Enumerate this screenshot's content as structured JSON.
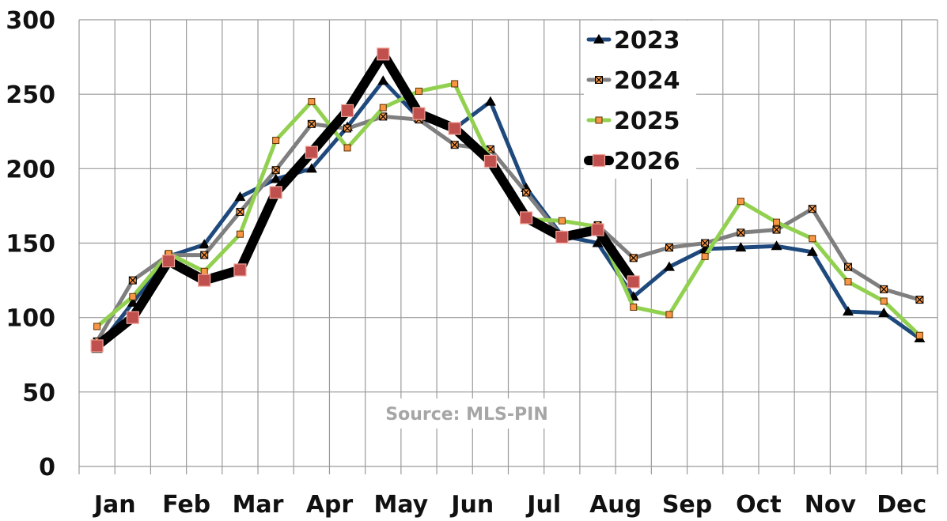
{
  "chart_data": {
    "type": "line",
    "title": "",
    "xlabel": "",
    "ylabel": "",
    "ylim": [
      0,
      300
    ],
    "yticks": [
      0,
      50,
      100,
      150,
      200,
      250,
      300
    ],
    "ytick_labels": [
      "0",
      "50",
      "100",
      "150",
      "200",
      "250",
      "300"
    ],
    "month_labels": [
      "Jan",
      "Feb",
      "Mar",
      "Apr",
      "May",
      "Jun",
      "Jul",
      "Aug",
      "Sep",
      "Oct",
      "Nov",
      "Dec"
    ],
    "x_points": 24,
    "grid": true,
    "legend_position": "top-right",
    "source": "Source: MLS-PIN",
    "series": [
      {
        "name": "2023",
        "color": "#1f497d",
        "marker": "triangle",
        "values": [
          79,
          110,
          141,
          149,
          181,
          193,
          200,
          228,
          259,
          234,
          227,
          245,
          187,
          155,
          150,
          114,
          134,
          146,
          147,
          148,
          144,
          104,
          103,
          86
        ]
      },
      {
        "name": "2024",
        "color": "#7f7f7f",
        "marker": "x-square",
        "values": [
          84,
          125,
          142,
          142,
          171,
          199,
          230,
          227,
          235,
          233,
          216,
          213,
          184,
          154,
          162,
          140,
          147,
          150,
          157,
          159,
          173,
          134,
          119,
          112
        ]
      },
      {
        "name": "2025",
        "color": "#92d050",
        "marker": "small-square",
        "values": [
          94,
          114,
          143,
          131,
          156,
          219,
          245,
          214,
          241,
          252,
          257,
          206,
          166,
          165,
          161,
          107,
          102,
          141,
          178,
          164,
          153,
          124,
          111,
          88
        ]
      },
      {
        "name": "2026",
        "color": "#000000",
        "marker": "square",
        "marker_color": "#c0504d",
        "values": [
          81,
          100,
          138,
          125,
          132,
          184,
          211,
          239,
          277,
          237,
          227,
          205,
          167,
          154,
          159,
          124
        ]
      }
    ]
  }
}
